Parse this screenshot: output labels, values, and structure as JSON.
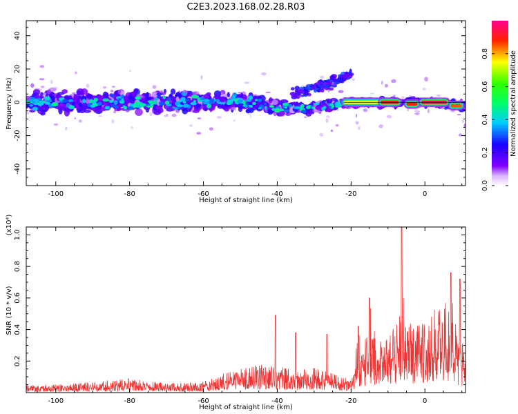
{
  "title": "C2E3.2023.168.02.28.R03",
  "chart_data": [
    {
      "type": "heatmap",
      "xlabel": "Height of straight line (km)",
      "ylabel": "Frequency (Hz)",
      "xlim": [
        -108,
        11
      ],
      "ylim": [
        -50,
        49
      ],
      "xticks": [
        -100,
        -80,
        -60,
        -40,
        -20,
        0
      ],
      "yticks": [
        -40,
        -20,
        0,
        20,
        40
      ],
      "colorbar": {
        "label": "Normalized spectral amplitude",
        "range": [
          0,
          1
        ],
        "ticks": [
          "0.0",
          "0.2",
          "0.4",
          "0.6",
          "0.8"
        ],
        "stops": [
          "#ffffff",
          "#cc99ff",
          "#7f00ff",
          "#0000ff",
          "#00ffff",
          "#00ff00",
          "#ffff00",
          "#ff0000",
          "#ff0088"
        ]
      },
      "band": [
        {
          "x": -108,
          "center": 0.0,
          "halfwidth": 6
        },
        {
          "x": -90,
          "center": 0.0,
          "halfwidth": 6
        },
        {
          "x": -70,
          "center": 0.5,
          "halfwidth": 6
        },
        {
          "x": -50,
          "center": 0.0,
          "halfwidth": 5
        },
        {
          "x": -36,
          "center": -4.0,
          "halfwidth": 4
        },
        {
          "x": -26,
          "center": -2.0,
          "halfwidth": 3
        },
        {
          "x": -20,
          "center": 0.0,
          "halfwidth": 2
        },
        {
          "x": 0,
          "center": 0.0,
          "halfwidth": 2
        },
        {
          "x": 11,
          "center": -2.0,
          "halfwidth": 2
        }
      ],
      "upper_branch": [
        {
          "x": -36,
          "y": 5
        },
        {
          "x": -30,
          "y": 8
        },
        {
          "x": -25,
          "y": 12
        },
        {
          "x": -21,
          "y": 16
        }
      ],
      "strong_segments": [
        {
          "x0": -22,
          "x1": -12,
          "y": 0,
          "level": 0.75
        },
        {
          "x0": -12,
          "x1": -7,
          "y": 0,
          "level": 0.9
        },
        {
          "x0": -5,
          "x1": -2,
          "y": -1,
          "level": 0.9
        },
        {
          "x0": -1,
          "x1": 6,
          "y": 0,
          "level": 0.95
        },
        {
          "x0": 7,
          "x1": 10,
          "y": -2,
          "level": 0.85
        }
      ]
    },
    {
      "type": "line",
      "xlabel": "Height of straight line (km)",
      "ylabel": "SNR (10 * v/v)",
      "scale_label": "(x10⁴)",
      "xlim": [
        -108,
        11
      ],
      "ylim": [
        0,
        1.05
      ],
      "xticks": [
        -100,
        -80,
        -60,
        -40,
        -20,
        0
      ],
      "yticks": [
        "0.2",
        "0.4",
        "0.6",
        "0.8",
        "1.0"
      ],
      "color": "#ee3333",
      "series": [
        {
          "x": [
            -108,
            -100,
            -90,
            -80,
            -70,
            -60,
            -55,
            -50,
            -45,
            -40,
            -35,
            -30,
            -25,
            -22,
            -20,
            -18,
            -16,
            -14,
            -12,
            -10,
            -8,
            -7,
            -6.3,
            -5.5,
            -4,
            -2,
            0,
            2,
            4,
            6,
            7,
            8,
            9,
            10,
            11
          ],
          "y": [
            0.05,
            0.05,
            0.07,
            0.09,
            0.06,
            0.07,
            0.12,
            0.15,
            0.18,
            0.17,
            0.14,
            0.16,
            0.12,
            0.1,
            0.1,
            0.25,
            0.35,
            0.4,
            0.38,
            0.38,
            0.42,
            0.45,
            0.95,
            0.42,
            0.45,
            0.48,
            0.5,
            0.52,
            0.56,
            0.58,
            0.62,
            0.55,
            0.38,
            0.32,
            0.3
          ]
        }
      ],
      "peaks": [
        {
          "x": -40.5,
          "y": 0.49
        },
        {
          "x": -35,
          "y": 0.38
        },
        {
          "x": -26.5,
          "y": 0.37
        },
        {
          "x": -18,
          "y": 0.42
        },
        {
          "x": -15,
          "y": 0.6
        },
        {
          "x": -6.3,
          "y": 1.05
        },
        {
          "x": 7,
          "y": 0.76
        },
        {
          "x": 9.5,
          "y": 0.72
        }
      ]
    }
  ]
}
